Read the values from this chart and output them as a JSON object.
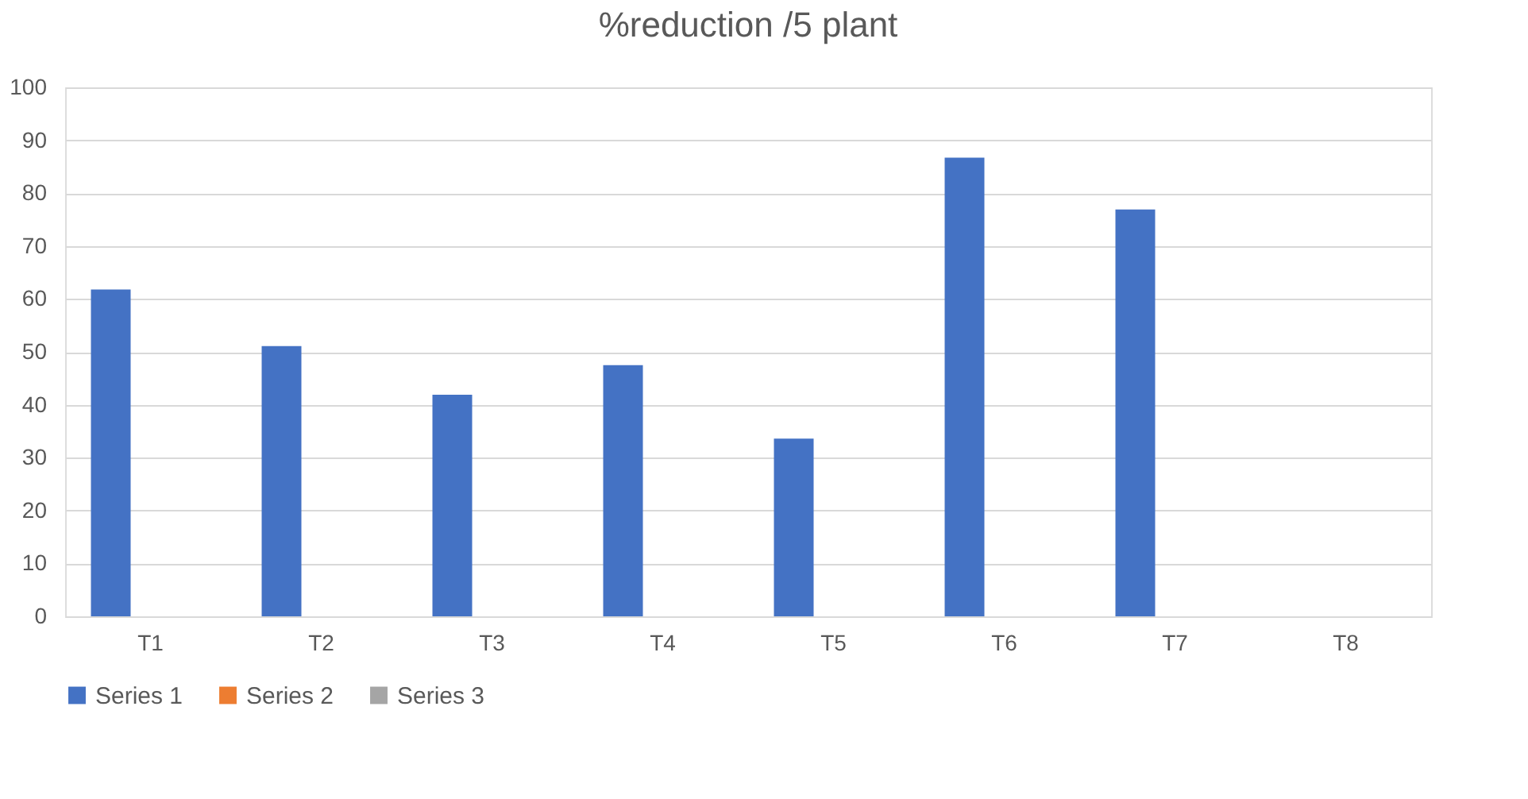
{
  "chart_data": {
    "type": "bar",
    "title": "%reduction /5 plant",
    "categories": [
      "T1",
      "T2",
      "T3",
      "T4",
      "T5",
      "T6",
      "T7",
      "T8"
    ],
    "series": [
      {
        "name": "Series 1",
        "color": "#4472c4",
        "values": [
          61.8,
          51.1,
          41.9,
          47.5,
          33.6,
          86.7,
          76.9,
          null
        ]
      },
      {
        "name": "Series 2",
        "color": "#ed7d31",
        "values": [
          null,
          null,
          null,
          null,
          null,
          null,
          null,
          null
        ]
      },
      {
        "name": "Series 3",
        "color": "#a5a5a5",
        "values": [
          null,
          null,
          null,
          null,
          null,
          null,
          null,
          null
        ]
      }
    ],
    "ylim": [
      0,
      100
    ],
    "yticks": [
      0,
      10,
      20,
      30,
      40,
      50,
      60,
      70,
      80,
      90,
      100
    ],
    "grid": "y",
    "legend": "bottom"
  }
}
